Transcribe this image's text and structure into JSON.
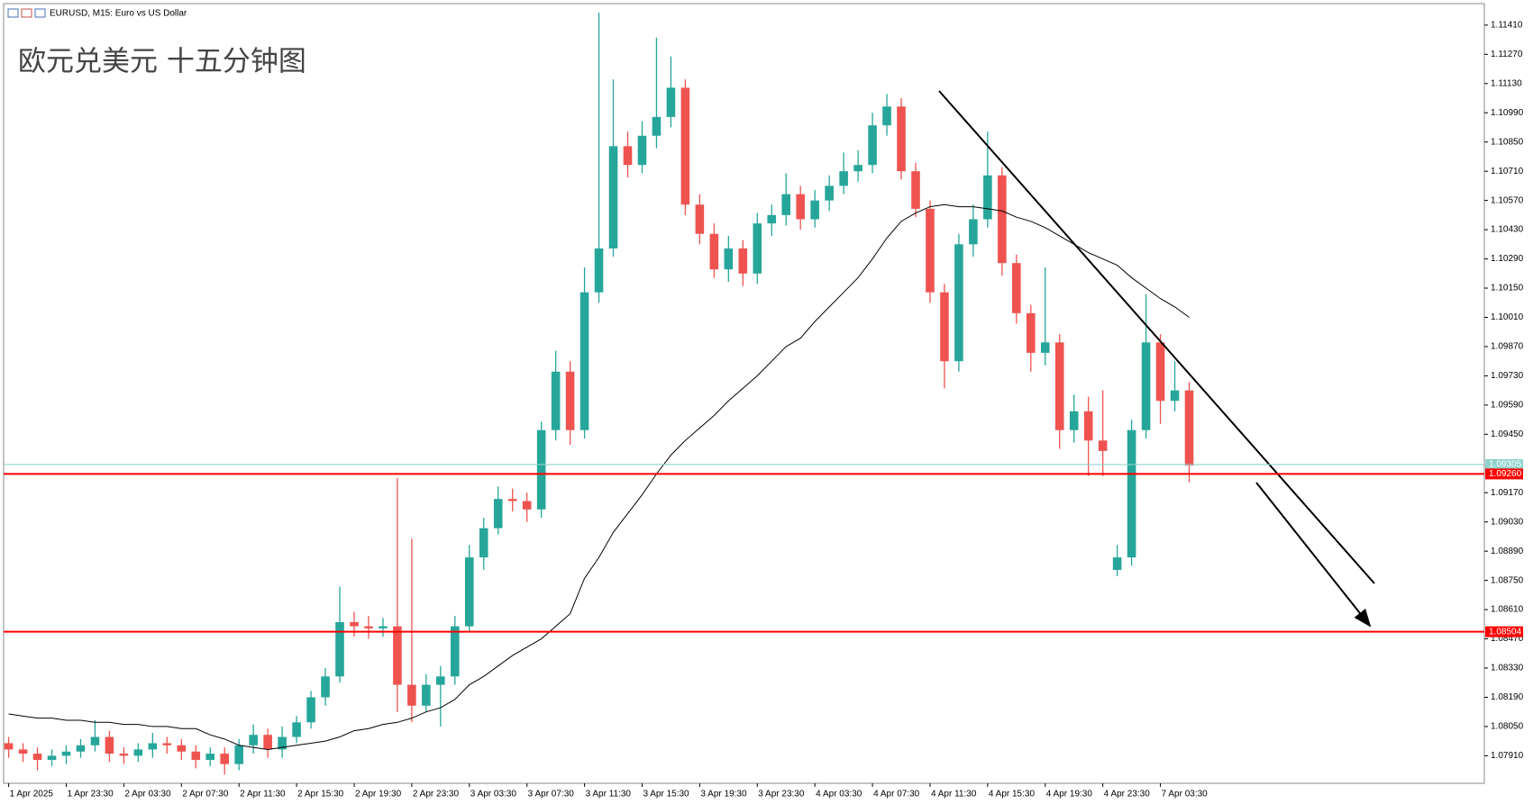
{
  "header": {
    "symbol": "EURUSD, M15:  Euro vs US Dollar"
  },
  "chart_data": {
    "type": "candlestick",
    "title": "欧元兑美元 十五分钟图",
    "open": [
      1.0797,
      1.0794,
      1.0792,
      1.0789,
      1.0791,
      1.0793,
      1.0796,
      1.08,
      1.0792,
      1.0791,
      1.0794,
      1.0797,
      1.0796,
      1.0793,
      1.0789,
      1.0792,
      1.0787,
      1.0796,
      1.0801,
      1.0794,
      1.08,
      1.0807,
      1.0819,
      1.0829,
      1.0855,
      1.0853,
      1.0852,
      1.0853,
      1.0825,
      1.0815,
      1.0825,
      1.0829,
      1.0853,
      1.0886,
      1.09,
      1.0914,
      1.0913,
      1.0909,
      1.0947,
      1.0975,
      1.0947,
      1.1013,
      1.1034,
      1.1083,
      1.1074,
      1.1088,
      1.1097,
      1.1111,
      1.1055,
      1.1041,
      1.1024,
      1.1034,
      1.1022,
      1.1046,
      1.105,
      1.106,
      1.1048,
      1.1057,
      1.1064,
      1.1071,
      1.1074,
      1.1093,
      1.1102,
      1.1071,
      1.1053,
      1.1013,
      1.098,
      1.1036,
      1.1048,
      1.1069,
      1.1027,
      1.1003,
      1.0984,
      1.0989,
      1.0947,
      1.0956,
      1.0942,
      1.088,
      1.0886,
      1.0947,
      1.0989,
      1.0961,
      1.0966
    ],
    "high": [
      1.08,
      1.0797,
      1.0795,
      1.0794,
      1.0796,
      1.0799,
      1.0808,
      1.0803,
      1.0795,
      1.0797,
      1.0802,
      1.08,
      1.0799,
      1.0796,
      1.0795,
      1.0795,
      1.0799,
      1.0806,
      1.0804,
      1.0805,
      1.081,
      1.0822,
      1.0833,
      1.0872,
      1.086,
      1.0858,
      1.0857,
      1.0924,
      1.0895,
      1.083,
      1.0834,
      1.0858,
      1.0892,
      1.0905,
      1.092,
      1.0919,
      1.0917,
      1.0951,
      1.0985,
      1.098,
      1.1025,
      1.1147,
      1.1115,
      1.109,
      1.1095,
      1.1135,
      1.1126,
      1.1115,
      1.106,
      1.1046,
      1.104,
      1.1038,
      1.1051,
      1.1055,
      1.107,
      1.1064,
      1.1062,
      1.1069,
      1.108,
      1.1081,
      1.1099,
      1.1108,
      1.1106,
      1.1075,
      1.1057,
      1.1017,
      1.1041,
      1.1055,
      1.109,
      1.1073,
      1.1031,
      1.1007,
      1.1025,
      1.0993,
      1.0964,
      1.0963,
      1.0966,
      1.0892,
      1.0952,
      1.1012,
      1.0993,
      1.098,
      1.097
    ],
    "low": [
      1.079,
      1.0788,
      1.0784,
      1.0786,
      1.0787,
      1.079,
      1.0793,
      1.0788,
      1.0787,
      1.0788,
      1.079,
      1.0792,
      1.0789,
      1.0785,
      1.0786,
      1.0782,
      1.0784,
      1.0792,
      1.079,
      1.079,
      1.0797,
      1.0804,
      1.0815,
      1.0826,
      1.0848,
      1.0847,
      1.0848,
      1.0812,
      1.0807,
      1.0812,
      1.0805,
      1.0825,
      1.085,
      1.088,
      1.0897,
      1.0908,
      1.0903,
      1.0905,
      1.0942,
      1.094,
      1.0943,
      1.1008,
      1.103,
      1.1068,
      1.107,
      1.1082,
      1.1092,
      1.105,
      1.1036,
      1.102,
      1.1018,
      1.1016,
      1.1017,
      1.104,
      1.1045,
      1.1043,
      1.1044,
      1.1052,
      1.106,
      1.1066,
      1.107,
      1.1088,
      1.1067,
      1.1049,
      1.1008,
      1.0967,
      1.0975,
      1.103,
      1.1044,
      1.1021,
      1.0998,
      1.0975,
      1.0978,
      1.0938,
      1.0941,
      1.0925,
      1.0925,
      1.0877,
      1.0882,
      1.0943,
      1.095,
      1.0956,
      1.0922
    ],
    "close": [
      1.0794,
      1.0792,
      1.0789,
      1.0791,
      1.0793,
      1.0796,
      1.08,
      1.0792,
      1.0791,
      1.0794,
      1.0797,
      1.0796,
      1.0793,
      1.0789,
      1.0792,
      1.0787,
      1.0796,
      1.0801,
      1.0794,
      1.08,
      1.0807,
      1.0819,
      1.0829,
      1.0855,
      1.0853,
      1.0852,
      1.0853,
      1.0825,
      1.0815,
      1.0825,
      1.0829,
      1.0853,
      1.0886,
      1.09,
      1.0914,
      1.0913,
      1.0909,
      1.0947,
      1.0975,
      1.0947,
      1.1013,
      1.1034,
      1.1083,
      1.1074,
      1.1088,
      1.1097,
      1.1111,
      1.1055,
      1.1041,
      1.1024,
      1.1034,
      1.1022,
      1.1046,
      1.105,
      1.106,
      1.1048,
      1.1057,
      1.1064,
      1.1071,
      1.1074,
      1.1093,
      1.1102,
      1.1071,
      1.1053,
      1.1013,
      1.098,
      1.1036,
      1.1048,
      1.1069,
      1.1027,
      1.1003,
      1.0984,
      1.0989,
      1.0947,
      1.0956,
      1.0942,
      1.0937,
      1.0886,
      1.0947,
      1.0989,
      1.0961,
      1.0966,
      1.093
    ],
    "up_color": "#26a69a",
    "down_color": "#ef5350",
    "ma": {
      "color": "#000000",
      "values": [
        1.0811,
        1.081,
        1.0809,
        1.0809,
        1.0808,
        1.0808,
        1.0807,
        1.0807,
        1.0806,
        1.0806,
        1.0805,
        1.0805,
        1.0804,
        1.0804,
        1.0801,
        1.0799,
        1.0796,
        1.0795,
        1.0794,
        1.0795,
        1.0796,
        1.0797,
        1.0798,
        1.08,
        1.0803,
        1.0804,
        1.0806,
        1.0807,
        1.0809,
        1.0812,
        1.0814,
        1.0818,
        1.0825,
        1.0829,
        1.0834,
        1.0839,
        1.0843,
        1.0847,
        1.0853,
        1.0859,
        1.0876,
        1.0886,
        1.0898,
        1.0907,
        1.0916,
        1.0926,
        1.0935,
        1.0942,
        1.0948,
        1.0954,
        1.0961,
        1.0967,
        1.0973,
        1.098,
        1.0987,
        1.0991,
        1.0999,
        1.1006,
        1.1013,
        1.102,
        1.1029,
        1.1039,
        1.1047,
        1.1051,
        1.1054,
        1.1055,
        1.1054,
        1.1054,
        1.1053,
        1.1052,
        1.1049,
        1.1047,
        1.1044,
        1.104,
        1.1036,
        1.1032,
        1.1029,
        1.1026,
        1.102,
        1.1015,
        1.101,
        1.1006,
        1.1001
      ]
    },
    "xlim": [
      -0.35,
      102.5
    ],
    "xticks": [
      {
        "value": 0,
        "label": "1 Apr 2025"
      },
      {
        "value": 4,
        "label": "1 Apr 23:30"
      },
      {
        "value": 8,
        "label": "2 Apr 03:30"
      },
      {
        "value": 12,
        "label": "2 Apr 07:30"
      },
      {
        "value": 16,
        "label": "2 Apr 11:30"
      },
      {
        "value": 20,
        "label": "2 Apr 15:30"
      },
      {
        "value": 24,
        "label": "2 Apr 19:30"
      },
      {
        "value": 28,
        "label": "2 Apr 23:30"
      },
      {
        "value": 32,
        "label": "3 Apr 03:30"
      },
      {
        "value": 36,
        "label": "3 Apr 07:30"
      },
      {
        "value": 40,
        "label": "3 Apr 11:30"
      },
      {
        "value": 44,
        "label": "3 Apr 15:30"
      },
      {
        "value": 48,
        "label": "3 Apr 19:30"
      },
      {
        "value": 52,
        "label": "3 Apr 23:30"
      },
      {
        "value": 56,
        "label": "4 Apr 03:30"
      },
      {
        "value": 60,
        "label": "4 Apr 07:30"
      },
      {
        "value": 64,
        "label": "4 Apr 11:30"
      },
      {
        "value": 68,
        "label": "4 Apr 15:30"
      },
      {
        "value": 72,
        "label": "4 Apr 19:30"
      },
      {
        "value": 76,
        "label": "4 Apr 23:30"
      },
      {
        "value": 80,
        "label": "7 Apr 03:30"
      }
    ],
    "ylim": [
      1.07778,
      1.11513
    ],
    "yticks": [
      {
        "value": 1.0791,
        "label": "1.07910"
      },
      {
        "value": 1.0805,
        "label": "1.08050"
      },
      {
        "value": 1.0819,
        "label": "1.08190"
      },
      {
        "value": 1.0833,
        "label": "1.08330"
      },
      {
        "value": 1.0847,
        "label": "1.08470"
      },
      {
        "value": 1.0861,
        "label": "1.08610"
      },
      {
        "value": 1.0875,
        "label": "1.08750"
      },
      {
        "value": 1.0889,
        "label": "1.08890"
      },
      {
        "value": 1.0903,
        "label": "1.09030"
      },
      {
        "value": 1.0917,
        "label": "1.09170"
      },
      {
        "value": 1.0945,
        "label": "1.09450"
      },
      {
        "value": 1.0959,
        "label": "1.09590"
      },
      {
        "value": 1.0973,
        "label": "1.09730"
      },
      {
        "value": 1.0987,
        "label": "1.09870"
      },
      {
        "value": 1.1001,
        "label": "1.10010"
      },
      {
        "value": 1.1015,
        "label": "1.10150"
      },
      {
        "value": 1.1029,
        "label": "1.10290"
      },
      {
        "value": 1.1043,
        "label": "1.10430"
      },
      {
        "value": 1.1057,
        "label": "1.10570"
      },
      {
        "value": 1.1071,
        "label": "1.10710"
      },
      {
        "value": 1.1085,
        "label": "1.10850"
      },
      {
        "value": 1.1099,
        "label": "1.10990"
      },
      {
        "value": 1.1113,
        "label": "1.11130"
      },
      {
        "value": 1.1127,
        "label": "1.11270"
      },
      {
        "value": 1.1141,
        "label": "1.11410"
      }
    ],
    "grid": false,
    "hlines": [
      {
        "value": 1.09305,
        "label": "1.09305",
        "color": "#8fd3cc"
      },
      {
        "value": 1.0926,
        "label": "1.09260",
        "color": "#ff0000"
      },
      {
        "value": 1.08504,
        "label": "1.08504",
        "color": "#ff0000"
      }
    ]
  }
}
